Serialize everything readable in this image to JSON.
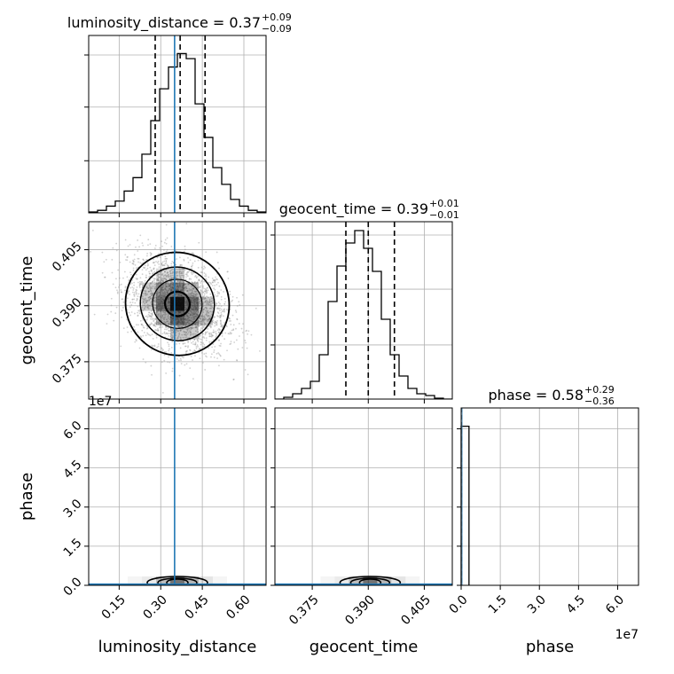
{
  "chart_data": {
    "type": "corner",
    "parameters": [
      "luminosity_distance",
      "geocent_time",
      "phase"
    ],
    "titles": [
      {
        "param": "luminosity_distance",
        "main": "luminosity_distance = 0.37",
        "plus": "+0.09",
        "minus": "−0.09"
      },
      {
        "param": "geocent_time",
        "main": "geocent_time = 0.39",
        "plus": "+0.01",
        "minus": "−0.01"
      },
      {
        "param": "phase",
        "main": "phase = 0.58",
        "plus": "+0.29",
        "minus": "−0.36"
      }
    ],
    "axes": {
      "luminosity_distance": {
        "range": [
          0.04,
          0.68
        ],
        "ticks": [
          0.15,
          0.3,
          0.45,
          0.6
        ],
        "tick_labels": [
          "0.15",
          "0.30",
          "0.45",
          "0.60"
        ],
        "label": "luminosity_distance",
        "truth": 0.35,
        "quantiles": [
          0.28,
          0.37,
          0.46
        ]
      },
      "geocent_time": {
        "range": [
          0.365,
          0.4125
        ],
        "ticks": [
          0.375,
          0.39,
          0.405
        ],
        "tick_labels": [
          "0.375",
          "0.390",
          "0.405"
        ],
        "label": "geocent_time",
        "quantiles": [
          0.384,
          0.39,
          0.397
        ]
      },
      "phase": {
        "range": [
          0,
          6.8
        ],
        "ticks": [
          0,
          1.5,
          3.0,
          4.5,
          6.0
        ],
        "tick_labels": [
          "0.0",
          "1.5",
          "3.0",
          "4.5",
          "6.0"
        ],
        "offset": "1e7",
        "label": "phase",
        "truth": 0,
        "hist_bar_upper": 0.3,
        "hist_level": 6.1
      }
    },
    "histograms": {
      "luminosity_distance": {
        "bin_start": 0.04,
        "bin_width": 0.032,
        "counts": [
          0.005,
          0.015,
          0.04,
          0.07,
          0.13,
          0.21,
          0.35,
          0.55,
          0.74,
          0.87,
          0.95,
          0.92,
          0.65,
          0.45,
          0.27,
          0.17,
          0.08,
          0.04,
          0.015,
          0.005
        ]
      },
      "geocent_time": {
        "bin_start": 0.365,
        "bin_width": 0.002375,
        "counts": [
          0.0,
          0.01,
          0.03,
          0.06,
          0.1,
          0.25,
          0.55,
          0.75,
          0.88,
          0.95,
          0.85,
          0.72,
          0.45,
          0.25,
          0.13,
          0.06,
          0.03,
          0.02,
          0.005,
          0.0
        ]
      }
    },
    "scatter_2d": {
      "x": "luminosity_distance",
      "y": "geocent_time",
      "center": [
        0.36,
        0.3905
      ],
      "sigma": [
        0.09,
        0.0065
      ],
      "correlation": -0.3,
      "n_points": 2600
    },
    "grid": true
  }
}
